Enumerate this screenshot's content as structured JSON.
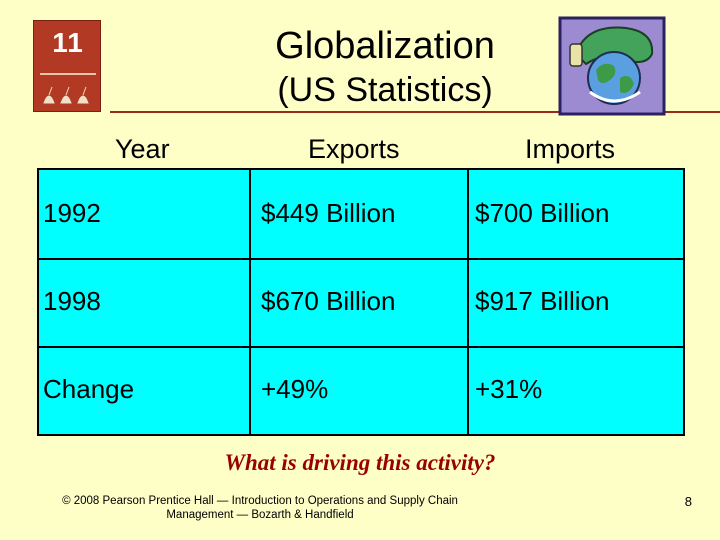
{
  "slide": {
    "chapter_number": "11",
    "title": "Globalization",
    "subtitle": "(US Statistics)",
    "question": "What is driving this activity?",
    "footer": "© 2008 Pearson Prentice Hall — Introduction to Operations and Supply Chain Management — Bozarth & Handfield",
    "page_number": "8"
  },
  "table": {
    "headers": [
      "Year",
      "Exports",
      "Imports"
    ],
    "rows": [
      [
        "1992",
        "$449 Billion",
        "$700 Billion"
      ],
      [
        "1998",
        "$670 Billion",
        "$917 Billion"
      ],
      [
        "Change",
        "+49%",
        "+31%"
      ]
    ]
  },
  "colors": {
    "background": "#fefec7",
    "table_fill": "#00ffff",
    "badge": "#b23a24",
    "rule": "#9b2a1a",
    "question": "#990000"
  },
  "icons": [
    "birds-icon",
    "globe-icon"
  ]
}
